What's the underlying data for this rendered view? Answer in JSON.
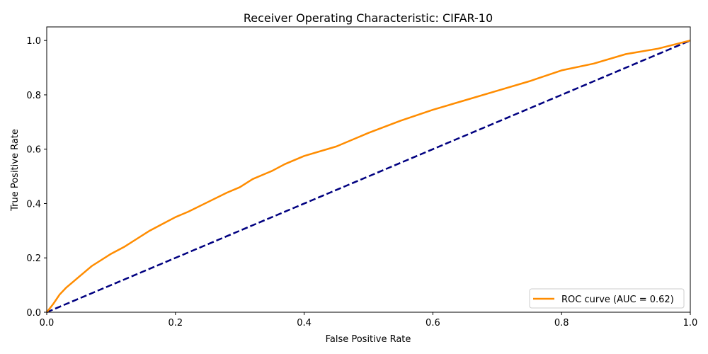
{
  "chart_data": {
    "type": "line",
    "title": "Receiver Operating Characteristic: CIFAR-10",
    "xlabel": "False Positive Rate",
    "ylabel": "True Positive Rate",
    "xlim": [
      0.0,
      1.0
    ],
    "ylim": [
      0.0,
      1.05
    ],
    "xticks": [
      "0.0",
      "0.2",
      "0.4",
      "0.6",
      "0.8",
      "1.0"
    ],
    "yticks": [
      "0.0",
      "0.2",
      "0.4",
      "0.6",
      "0.8",
      "1.0"
    ],
    "grid": false,
    "legend_position": "lower-right",
    "series": [
      {
        "name": "ROC curve (AUC = 0.62)",
        "color": "#ff8c00",
        "style": "solid",
        "x": [
          0.0,
          0.01,
          0.02,
          0.03,
          0.04,
          0.05,
          0.06,
          0.07,
          0.08,
          0.1,
          0.12,
          0.14,
          0.16,
          0.18,
          0.2,
          0.22,
          0.25,
          0.28,
          0.3,
          0.32,
          0.35,
          0.37,
          0.4,
          0.45,
          0.5,
          0.55,
          0.6,
          0.65,
          0.7,
          0.75,
          0.8,
          0.85,
          0.9,
          0.95,
          1.0
        ],
        "y": [
          0.0,
          0.03,
          0.065,
          0.09,
          0.11,
          0.13,
          0.15,
          0.17,
          0.185,
          0.215,
          0.24,
          0.27,
          0.3,
          0.325,
          0.35,
          0.37,
          0.405,
          0.44,
          0.46,
          0.49,
          0.52,
          0.545,
          0.575,
          0.61,
          0.66,
          0.705,
          0.745,
          0.78,
          0.815,
          0.85,
          0.89,
          0.915,
          0.95,
          0.97,
          1.0
        ]
      },
      {
        "name": "",
        "color": "#000080",
        "style": "dashed",
        "x": [
          0.0,
          1.0
        ],
        "y": [
          0.0,
          1.0
        ]
      }
    ]
  }
}
